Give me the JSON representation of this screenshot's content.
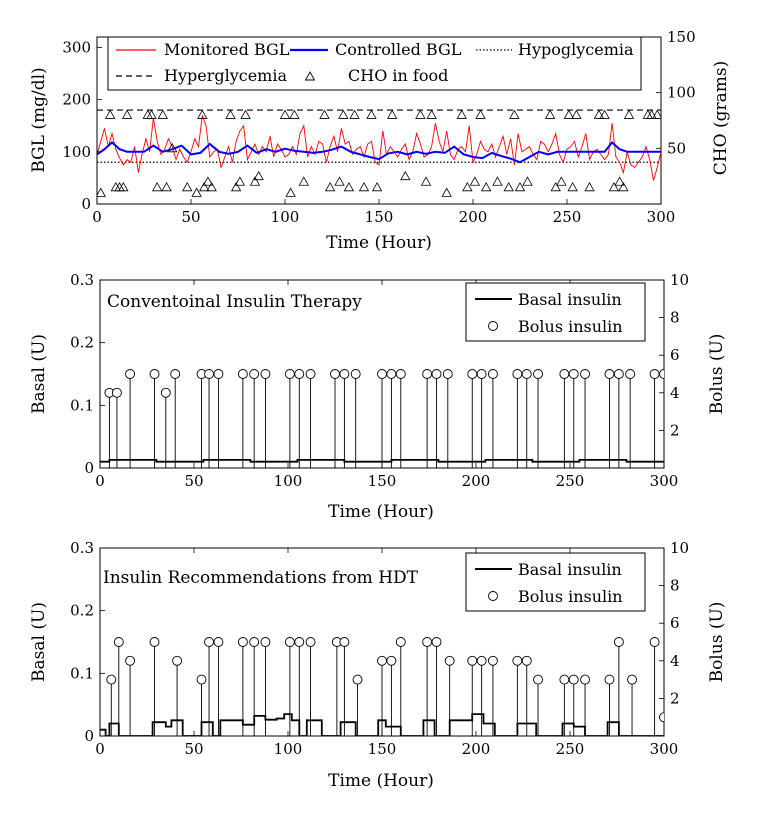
{
  "chart_data": [
    {
      "type": "line",
      "xlabel": "Time (Hour)",
      "ylabel": "BGL (mg/dl)",
      "ylabel_right": "CHO (grams)",
      "xlim": [
        0,
        300
      ],
      "ylim": [
        0,
        320
      ],
      "ylim_right": [
        0,
        150
      ],
      "xticks": [
        "0",
        "50",
        "100",
        "150",
        "200",
        "250",
        "300"
      ],
      "yticks": [
        "0",
        "100",
        "200",
        "300"
      ],
      "yticks_right": [
        "50",
        "100",
        "150"
      ],
      "legend": [
        "Monitored BGL",
        "Controlled BGL",
        "Hypoglycemia",
        "Hyperglycemia",
        "CHO in food"
      ],
      "legend_position": "top",
      "colors": {
        "monitored": "#ff0000",
        "controlled": "#0000ff"
      },
      "hyperglycemia": 180,
      "hypoglycemia": 80,
      "monitored_bgl": {
        "x": [
          0,
          2,
          4,
          6,
          8,
          10,
          12,
          14,
          16,
          18,
          20,
          22,
          24,
          26,
          28,
          30,
          32,
          34,
          36,
          38,
          40,
          42,
          44,
          46,
          48,
          50,
          52,
          54,
          56,
          58,
          60,
          62,
          64,
          66,
          68,
          70,
          72,
          74,
          76,
          78,
          80,
          82,
          84,
          86,
          88,
          90,
          92,
          94,
          96,
          98,
          100,
          102,
          104,
          106,
          108,
          110,
          112,
          114,
          116,
          118,
          120,
          122,
          124,
          126,
          128,
          130,
          132,
          134,
          136,
          138,
          140,
          142,
          144,
          146,
          148,
          150,
          152,
          154,
          156,
          158,
          160,
          162,
          164,
          166,
          168,
          170,
          172,
          174,
          176,
          178,
          180,
          182,
          184,
          186,
          188,
          190,
          192,
          194,
          196,
          198,
          200,
          202,
          204,
          206,
          208,
          210,
          212,
          214,
          216,
          218,
          220,
          222,
          224,
          226,
          228,
          230,
          232,
          234,
          236,
          238,
          240,
          242,
          244,
          246,
          248,
          250,
          252,
          254,
          256,
          258,
          260,
          262,
          264,
          266,
          268,
          270,
          272,
          274,
          276,
          278,
          280,
          282,
          284,
          286,
          288,
          290,
          292,
          294,
          296,
          298,
          300
        ],
        "y": [
          95,
          120,
          145,
          110,
          135,
          105,
          88,
          75,
          85,
          80,
          110,
          60,
          95,
          125,
          100,
          165,
          120,
          95,
          105,
          125,
          110,
          85,
          105,
          90,
          80,
          100,
          125,
          110,
          170,
          150,
          90,
          100,
          105,
          70,
          90,
          110,
          80,
          120,
          140,
          150,
          85,
          100,
          115,
          95,
          110,
          100,
          130,
          90,
          115,
          105,
          90,
          95,
          110,
          95,
          135,
          150,
          90,
          110,
          95,
          120,
          115,
          80,
          110,
          130,
          100,
          145,
          115,
          120,
          95,
          105,
          110,
          90,
          115,
          120,
          80,
          75,
          140,
          95,
          110,
          100,
          90,
          105,
          115,
          85,
          100,
          135,
          115,
          90,
          95,
          110,
          155,
          120,
          100,
          140,
          95,
          85,
          105,
          110,
          100,
          150,
          80,
          95,
          120,
          105,
          100,
          115,
          90,
          110,
          130,
          95,
          125,
          75,
          135,
          100,
          105,
          110,
          95,
          85,
          120,
          115,
          100,
          115,
          135,
          95,
          80,
          105,
          110,
          120,
          90,
          110,
          135,
          85,
          100,
          105,
          95,
          85,
          95,
          155,
          90,
          80,
          60,
          100,
          75,
          70,
          80,
          90,
          110,
          85,
          45,
          70,
          100
        ]
      },
      "controlled_bgl": {
        "x": [
          0,
          4,
          8,
          12,
          16,
          20,
          25,
          30,
          35,
          40,
          45,
          50,
          55,
          60,
          65,
          70,
          75,
          80,
          85,
          90,
          95,
          100,
          105,
          110,
          115,
          120,
          125,
          130,
          135,
          140,
          145,
          150,
          155,
          160,
          165,
          170,
          175,
          180,
          185,
          190,
          195,
          200,
          205,
          210,
          215,
          220,
          225,
          230,
          235,
          240,
          245,
          250,
          255,
          260,
          265,
          270,
          274,
          278,
          282,
          286,
          290,
          295,
          298,
          300
        ],
        "y": [
          95,
          105,
          118,
          105,
          100,
          100,
          100,
          112,
          100,
          105,
          112,
          95,
          98,
          115,
          100,
          96,
          100,
          112,
          98,
          105,
          100,
          106,
          102,
          100,
          98,
          100,
          104,
          110,
          100,
          95,
          90,
          86,
          97,
          100,
          95,
          100,
          96,
          100,
          98,
          110,
          95,
          90,
          88,
          98,
          92,
          87,
          80,
          90,
          100,
          95,
          100,
          100,
          100,
          100,
          100,
          100,
          118,
          105,
          100,
          100,
          100,
          100,
          100,
          100
        ]
      },
      "cho_in_food": {
        "x": [
          2,
          7,
          10,
          12,
          14,
          16,
          27,
          29,
          32,
          35,
          37,
          40,
          48,
          53,
          56,
          57,
          59,
          61,
          71,
          74,
          76,
          79,
          84,
          86,
          100,
          103,
          105,
          110,
          121,
          124,
          129,
          131,
          134,
          137,
          142,
          146,
          149,
          157,
          164,
          172,
          175,
          178,
          186,
          194,
          197,
          201,
          204,
          207,
          213,
          219,
          222,
          225,
          229,
          241,
          244,
          247,
          251,
          253,
          255,
          262,
          267,
          270,
          275,
          278,
          280,
          283,
          293,
          295,
          298
        ],
        "y": [
          10,
          80,
          15,
          15,
          15,
          80,
          80,
          80,
          15,
          80,
          15,
          50,
          15,
          10,
          80,
          15,
          20,
          15,
          80,
          15,
          20,
          80,
          20,
          25,
          80,
          10,
          80,
          20,
          80,
          15,
          20,
          80,
          15,
          80,
          15,
          80,
          15,
          80,
          25,
          80,
          20,
          80,
          10,
          80,
          15,
          20,
          80,
          15,
          20,
          15,
          80,
          15,
          20,
          80,
          15,
          20,
          80,
          15,
          80,
          15,
          80,
          80,
          15,
          20,
          15,
          80,
          80,
          80,
          80
        ]
      }
    },
    {
      "type": "bar",
      "annotation": "Conventoinal Insulin Therapy",
      "xlabel": "Time (Hour)",
      "ylabel": "Basal (U)",
      "ylabel_right": "Bolus (U)",
      "xlim": [
        0,
        300
      ],
      "ylim": [
        0,
        0.3
      ],
      "ylim_right": [
        0,
        10
      ],
      "xticks": [
        "0",
        "50",
        "100",
        "150",
        "200",
        "250",
        "300"
      ],
      "yticks": [
        "0",
        "0.1",
        "0.2",
        "0.3"
      ],
      "yticks_right": [
        "2",
        "4",
        "6",
        "8",
        "10"
      ],
      "legend": [
        "Basal insulin",
        "Bolus insulin"
      ],
      "legend_position": "top-right",
      "basal_insulin": {
        "x": [
          0,
          5,
          5,
          30,
          30,
          55,
          55,
          80,
          80,
          105,
          105,
          130,
          130,
          155,
          155,
          180,
          180,
          205,
          205,
          230,
          230,
          255,
          255,
          280,
          280,
          300
        ],
        "y": [
          0.01,
          0.01,
          0.013,
          0.013,
          0.01,
          0.01,
          0.013,
          0.013,
          0.01,
          0.01,
          0.013,
          0.013,
          0.01,
          0.01,
          0.013,
          0.013,
          0.01,
          0.01,
          0.013,
          0.013,
          0.01,
          0.01,
          0.013,
          0.013,
          0.01,
          0.01
        ]
      },
      "bolus_insulin": {
        "x": [
          5,
          9,
          16,
          29,
          35,
          40,
          54,
          58,
          63,
          76,
          82,
          88,
          101,
          106,
          112,
          125,
          130,
          136,
          150,
          155,
          160,
          174,
          179,
          185,
          198,
          203,
          209,
          222,
          227,
          233,
          247,
          252,
          258,
          271,
          276,
          282,
          295,
          300
        ],
        "y": [
          4,
          4,
          5,
          5,
          4,
          5,
          5,
          5,
          5,
          5,
          5,
          5,
          5,
          5,
          5,
          5,
          5,
          5,
          5,
          5,
          5,
          5,
          5,
          5,
          5,
          5,
          5,
          5,
          5,
          5,
          5,
          5,
          5,
          5,
          5,
          5,
          5,
          5
        ]
      }
    },
    {
      "type": "bar",
      "annotation": "Insulin Recommendations from HDT",
      "xlabel": "Time (Hour)",
      "ylabel": "Basal (U)",
      "ylabel_right": "Bolus (U)",
      "xlim": [
        0,
        300
      ],
      "ylim": [
        0,
        0.3
      ],
      "ylim_right": [
        0,
        10
      ],
      "xticks": [
        "0",
        "50",
        "100",
        "150",
        "200",
        "250",
        "300"
      ],
      "yticks": [
        "0",
        "0.1",
        "0.2",
        "0.3"
      ],
      "yticks_right": [
        "2",
        "4",
        "6",
        "8",
        "10"
      ],
      "legend": [
        "Basal insulin",
        "Bolus insulin"
      ],
      "legend_position": "top-right",
      "basal_insulin": {
        "x": [
          0,
          3,
          3,
          5,
          5,
          10,
          10,
          28,
          28,
          35,
          35,
          38,
          38,
          44,
          44,
          54,
          54,
          60,
          60,
          64,
          64,
          76,
          76,
          82,
          82,
          88,
          88,
          94,
          94,
          98,
          98,
          102,
          102,
          106,
          106,
          110,
          110,
          118,
          118,
          128,
          128,
          136,
          136,
          148,
          148,
          152,
          152,
          160,
          160,
          172,
          172,
          178,
          178,
          186,
          186,
          198,
          198,
          204,
          204,
          210,
          210,
          222,
          222,
          232,
          232,
          246,
          246,
          252,
          252,
          258,
          258,
          270,
          270,
          276,
          276,
          300
        ],
        "y": [
          0.01,
          0.01,
          0,
          0,
          0.02,
          0.02,
          0,
          0,
          0.022,
          0.022,
          0.015,
          0.015,
          0.025,
          0.025,
          0,
          0,
          0.022,
          0.022,
          0,
          0,
          0.025,
          0.025,
          0.018,
          0.018,
          0.032,
          0.032,
          0.026,
          0.026,
          0.028,
          0.028,
          0.035,
          0.035,
          0.025,
          0.025,
          0,
          0,
          0.025,
          0.025,
          0,
          0,
          0.022,
          0.022,
          0,
          0,
          0.025,
          0.025,
          0.015,
          0.015,
          0,
          0,
          0.025,
          0.025,
          0,
          0,
          0.025,
          0.025,
          0.035,
          0.035,
          0.02,
          0.02,
          0,
          0,
          0.02,
          0.02,
          0,
          0,
          0.02,
          0.02,
          0.015,
          0.015,
          0,
          0,
          0.022,
          0.022,
          0,
          0
        ]
      },
      "bolus_insulin": {
        "x": [
          6,
          10,
          16,
          29,
          41,
          54,
          58,
          63,
          76,
          82,
          88,
          101,
          106,
          112,
          126,
          130,
          137,
          150,
          155,
          160,
          174,
          179,
          186,
          198,
          203,
          209,
          222,
          227,
          233,
          247,
          252,
          258,
          271,
          276,
          283,
          295,
          300
        ],
        "y": [
          3,
          5,
          4,
          5,
          4,
          3,
          5,
          5,
          5,
          5,
          5,
          5,
          5,
          5,
          5,
          5,
          3,
          4,
          4,
          5,
          5,
          5,
          4,
          4,
          4,
          4,
          4,
          4,
          3,
          3,
          3,
          3,
          3,
          5,
          3,
          5,
          1
        ]
      }
    }
  ]
}
